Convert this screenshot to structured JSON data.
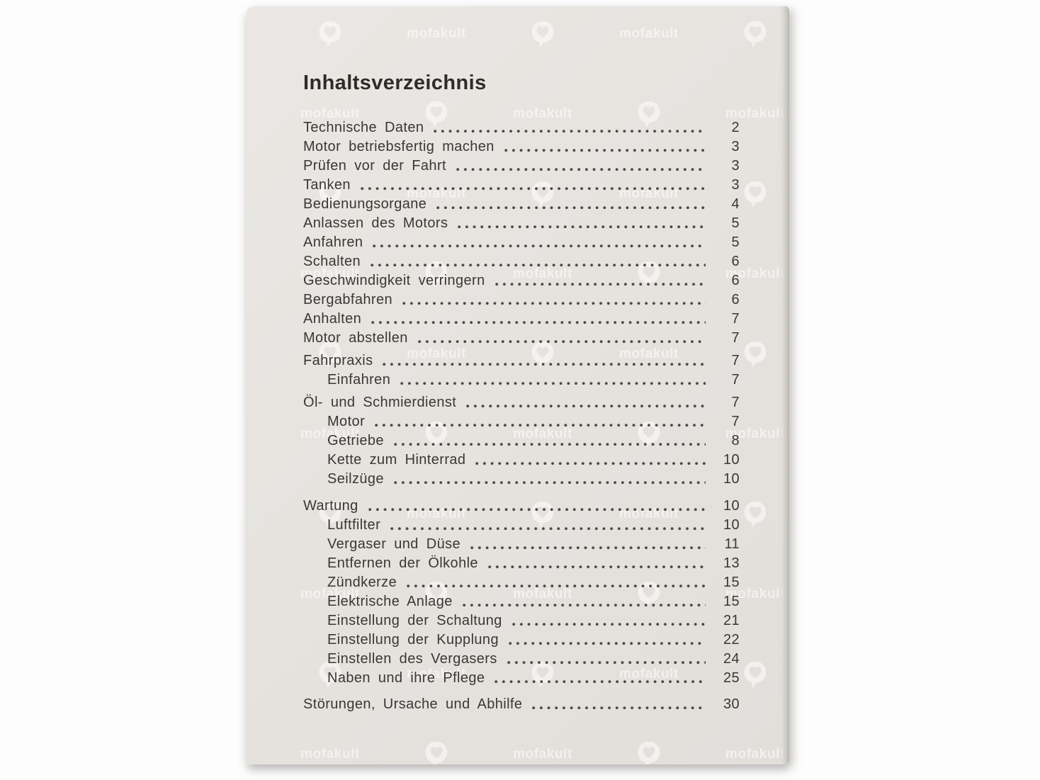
{
  "document": {
    "title": "Inhaltsverzeichnis",
    "entries": [
      {
        "label": "Technische Daten",
        "page": "2",
        "indent": 0,
        "gap": 0
      },
      {
        "label": "Motor betriebsfertig machen",
        "page": "3",
        "indent": 0,
        "gap": 0
      },
      {
        "label": "Prüfen vor der Fahrt",
        "page": "3",
        "indent": 0,
        "gap": 0
      },
      {
        "label": "Tanken",
        "page": "3",
        "indent": 0,
        "gap": 0
      },
      {
        "label": "Bedienungsorgane",
        "page": "4",
        "indent": 0,
        "gap": 0
      },
      {
        "label": "Anlassen des Motors",
        "page": "5",
        "indent": 0,
        "gap": 0
      },
      {
        "label": "Anfahren",
        "page": "5",
        "indent": 0,
        "gap": 0
      },
      {
        "label": "Schalten",
        "page": "6",
        "indent": 0,
        "gap": 0
      },
      {
        "label": "Geschwindigkeit verringern",
        "page": "6",
        "indent": 0,
        "gap": 0
      },
      {
        "label": "Bergabfahren",
        "page": "6",
        "indent": 0,
        "gap": 0
      },
      {
        "label": "Anhalten",
        "page": "7",
        "indent": 0,
        "gap": 0
      },
      {
        "label": "Motor abstellen",
        "page": "7",
        "indent": 0,
        "gap": 0
      },
      {
        "label": "Fahrpraxis",
        "page": "7",
        "indent": 0,
        "gap": 5
      },
      {
        "label": "Einfahren",
        "page": "7",
        "indent": 1,
        "gap": 0
      },
      {
        "label": "Öl- und Schmierdienst",
        "page": "7",
        "indent": 0,
        "gap": 5
      },
      {
        "label": "Motor",
        "page": "7",
        "indent": 1,
        "gap": 0
      },
      {
        "label": "Getriebe",
        "page": "8",
        "indent": 1,
        "gap": 0
      },
      {
        "label": "Kette zum Hinterrad",
        "page": "10",
        "indent": 1,
        "gap": 0
      },
      {
        "label": "Seilzüge",
        "page": "10",
        "indent": 1,
        "gap": 0
      },
      {
        "label": "Wartung",
        "page": "10",
        "indent": 0,
        "gap": 11
      },
      {
        "label": "Luftfilter",
        "page": "10",
        "indent": 1,
        "gap": 0
      },
      {
        "label": "Vergaser und Düse",
        "page": "11",
        "indent": 1,
        "gap": 0
      },
      {
        "label": "Entfernen der Ölkohle",
        "page": "13",
        "indent": 1,
        "gap": 0
      },
      {
        "label": "Zündkerze",
        "page": "15",
        "indent": 1,
        "gap": 0
      },
      {
        "label": "Elektrische Anlage",
        "page": "15",
        "indent": 1,
        "gap": 0
      },
      {
        "label": "Einstellung der Schaltung",
        "page": "21",
        "indent": 1,
        "gap": 0
      },
      {
        "label": "Einstellung der Kupplung",
        "page": "22",
        "indent": 1,
        "gap": 0
      },
      {
        "label": "Einstellen des Vergasers",
        "page": "24",
        "indent": 1,
        "gap": 0
      },
      {
        "label": "Naben und ihre Pflege",
        "page": "25",
        "indent": 1,
        "gap": 0
      },
      {
        "label": "Störungen, Ursache und Abhilfe",
        "page": "30",
        "indent": 0,
        "gap": 10
      }
    ]
  },
  "watermark": {
    "text": "mofakult",
    "icon": "mofakult-pin-heart-icon",
    "color": "#ffffff"
  },
  "colors": {
    "canvas_background": "#ffffff",
    "page_background": "#e6e3df",
    "text": "#3a3734"
  }
}
